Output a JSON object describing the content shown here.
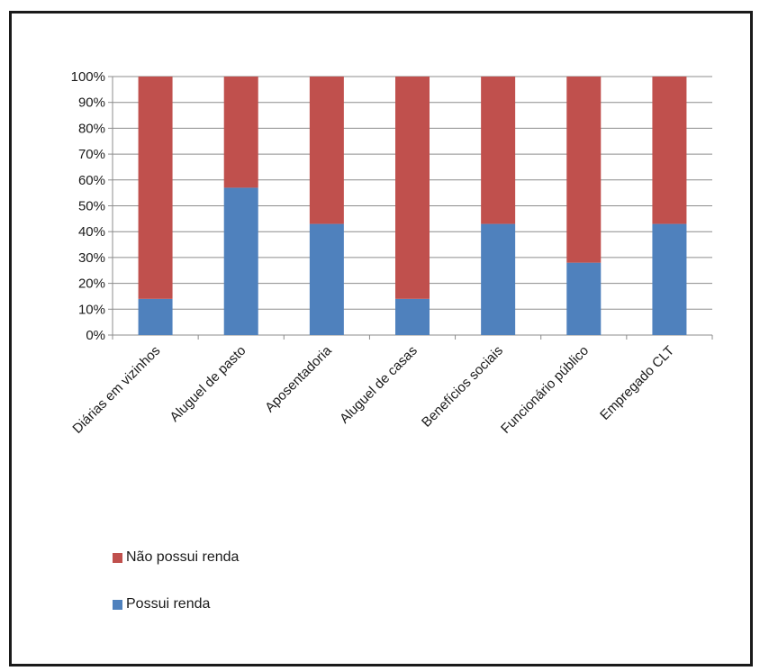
{
  "chart_data": {
    "type": "bar",
    "stacked": true,
    "categories": [
      "Diárias em vizinhos",
      "Aluguel de pasto",
      "Aposentadoria",
      "Aluguel de casas",
      "Benefícios sociais",
      "Funcionário público",
      "Empregado CLT"
    ],
    "series": [
      {
        "name": "Possui renda",
        "color": "#4f81bd",
        "values": [
          14,
          57,
          43,
          14,
          43,
          28,
          43
        ]
      },
      {
        "name": "Não possui renda",
        "color": "#c0504d",
        "values": [
          86,
          43,
          57,
          86,
          57,
          72,
          57
        ]
      }
    ],
    "title": "",
    "xlabel": "",
    "ylabel": "",
    "ylim": [
      0,
      100
    ],
    "yticks": [
      "0%",
      "10%",
      "20%",
      "30%",
      "40%",
      "50%",
      "60%",
      "70%",
      "80%",
      "90%",
      "100%"
    ],
    "grid": true,
    "legend_position": "bottom-left",
    "legend": [
      {
        "label": "Não possui renda",
        "color": "#c0504d"
      },
      {
        "label": "Possui renda",
        "color": "#4f81bd"
      }
    ]
  }
}
